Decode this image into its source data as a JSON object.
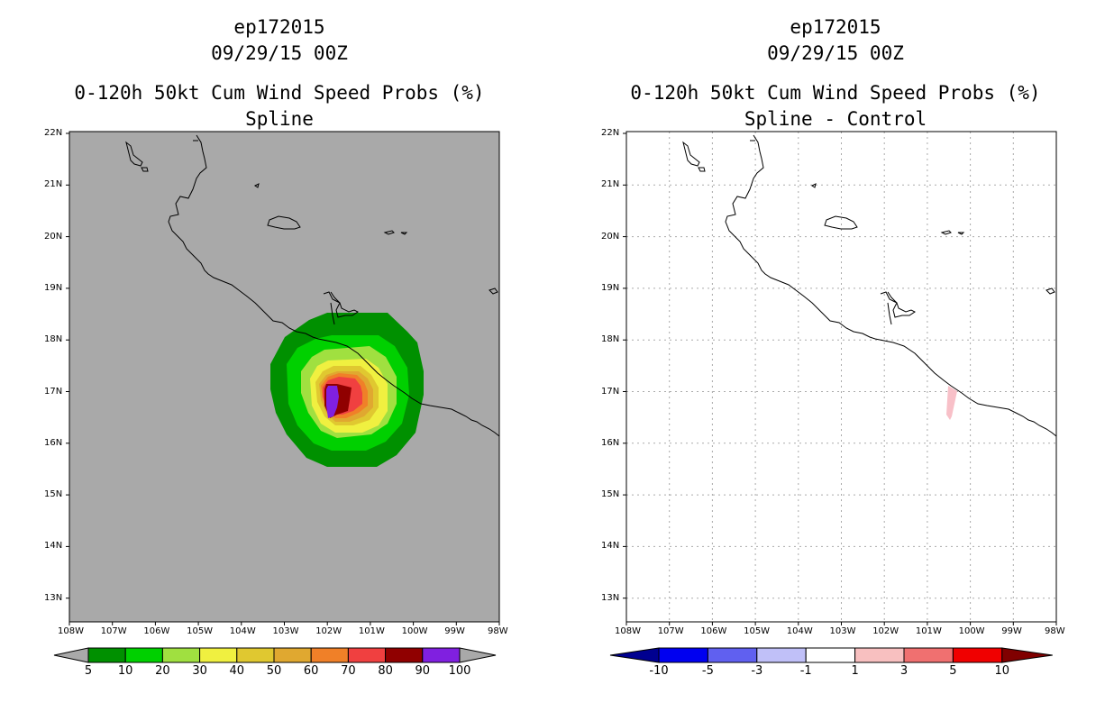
{
  "left_panel": {
    "title_line1": "ep172015",
    "title_line2": "09/29/15 00Z",
    "title_line3": "0-120h 50kt Cum Wind Speed Probs (%)",
    "title_line4": "Spline",
    "background_color": "#a9a9a9",
    "colorbar": {
      "colors": [
        "#009000",
        "#00d000",
        "#a0e040",
        "#f0f040",
        "#e0c830",
        "#e0a830",
        "#f08028",
        "#f04040",
        "#900000",
        "#8020e0"
      ],
      "labels": [
        "5",
        "10",
        "20",
        "30",
        "40",
        "50",
        "60",
        "70",
        "80",
        "90",
        "100"
      ]
    },
    "prob_contours": [
      {
        "level": 5,
        "color": "#009000"
      },
      {
        "level": 10,
        "color": "#00d000"
      },
      {
        "level": 20,
        "color": "#a0e040"
      },
      {
        "level": 30,
        "color": "#f0f040"
      },
      {
        "level": 40,
        "color": "#e0c830"
      },
      {
        "level": 50,
        "color": "#e0a830"
      },
      {
        "level": 60,
        "color": "#f08028"
      },
      {
        "level": 70,
        "color": "#f04040"
      },
      {
        "level": 80,
        "color": "#900000"
      },
      {
        "level": 90,
        "color": "#8020e0"
      }
    ]
  },
  "right_panel": {
    "title_line1": "ep172015",
    "title_line2": "09/29/15 00Z",
    "title_line3": "0-120h 50kt Cum Wind Speed Probs (%)",
    "title_line4": "Spline - Control",
    "background_color": "#ffffff",
    "colorbar": {
      "colors": [
        "#000090",
        "#0000f0",
        "#6060f0",
        "#c0c0f8",
        "#ffffff",
        "#f8c0c0",
        "#f07070",
        "#f00000",
        "#800000"
      ],
      "labels": [
        "-10",
        "-5",
        "-3",
        "-1",
        "1",
        "3",
        "5",
        "10"
      ]
    },
    "diff_region": {
      "value_range": "1 to 3",
      "color": "#f8c0c8"
    }
  },
  "map": {
    "lon_labels": [
      "108W",
      "107W",
      "106W",
      "105W",
      "104W",
      "103W",
      "102W",
      "101W",
      "100W",
      "99W",
      "98W"
    ],
    "lat_labels": [
      "22N",
      "21N",
      "20N",
      "19N",
      "18N",
      "17N",
      "16N",
      "15N",
      "14N",
      "13N"
    ]
  }
}
